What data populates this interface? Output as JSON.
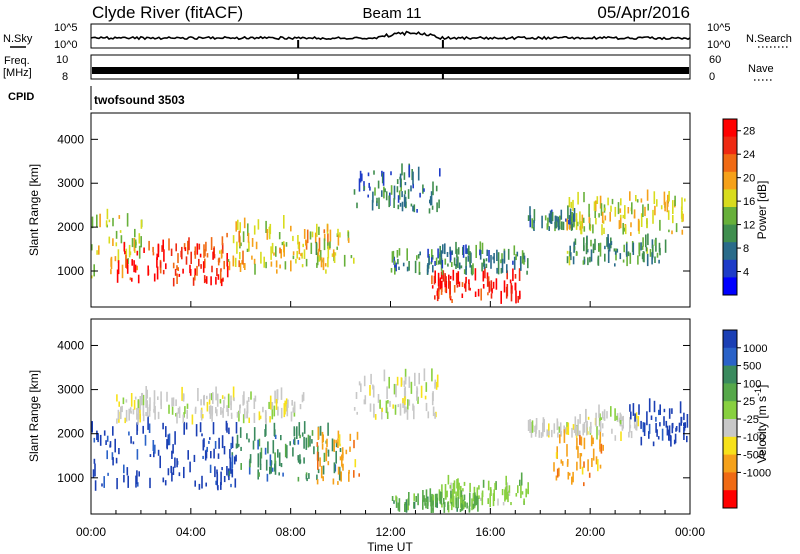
{
  "header": {
    "title": "Clyde River (fitACF)",
    "beam": "Beam 11",
    "date": "05/Apr/2016"
  },
  "strips": {
    "nsky_label": "N.Sky",
    "nsearch_label": "N.Search",
    "nsky_ticks": [
      "10^5",
      "10^0"
    ],
    "nsearch_ticks": [
      "10^5",
      "10^0"
    ],
    "freq_label": "Freq.",
    "freq_unit": "[MHz]",
    "freq_ticks": [
      "10",
      "8"
    ],
    "nave_label": "Nave",
    "nave_ticks": [
      "60",
      "0"
    ],
    "cpid_label": "CPID",
    "cpid_value": "twofsound 3503"
  },
  "chart_data": [
    {
      "type": "heatmap",
      "name": "power",
      "ylabel": "Slant Range [km]",
      "y_ticks": [
        1000,
        2000,
        3000,
        4000
      ],
      "ylim": [
        180,
        4600
      ],
      "xlim_hours": [
        0,
        24
      ],
      "colorbar": {
        "label": "Power [dB]",
        "ticks": [
          4,
          8,
          12,
          16,
          20,
          24,
          28
        ],
        "range": [
          0,
          30
        ],
        "colors": [
          "#0000ff",
          "#1e3cc8",
          "#2a6b8a",
          "#3f8e4e",
          "#67b03a",
          "#d8dc1e",
          "#f5a11a",
          "#f06a14",
          "#ee2a12",
          "#ff0000"
        ]
      },
      "echo_regions": [
        {
          "t0": 0.0,
          "t1": 2.0,
          "r0": 800,
          "r1": 2300,
          "level": 0.55
        },
        {
          "t0": 1.0,
          "t1": 5.5,
          "r0": 650,
          "r1": 1500,
          "level": 0.9
        },
        {
          "t0": 5.0,
          "t1": 9.5,
          "r0": 900,
          "r1": 2000,
          "level": 0.6
        },
        {
          "t0": 9.0,
          "t1": 10.5,
          "r0": 950,
          "r1": 1900,
          "level": 0.55
        },
        {
          "t0": 13.5,
          "t1": 17.2,
          "r0": 250,
          "r1": 850,
          "level": 0.95
        },
        {
          "t0": 17.5,
          "t1": 19.5,
          "r0": 1900,
          "r1": 2200,
          "level": 0.3
        },
        {
          "t0": 19.0,
          "t1": 23.8,
          "r0": 1800,
          "r1": 2600,
          "level": 0.55
        },
        {
          "t0": 10.5,
          "t1": 14.0,
          "r0": 2300,
          "r1": 3200,
          "level": 0.25
        },
        {
          "t0": 12.0,
          "t1": 17.5,
          "r0": 900,
          "r1": 1400,
          "level": 0.3
        },
        {
          "t0": 19.0,
          "t1": 23.0,
          "r0": 1100,
          "r1": 1600,
          "level": 0.35
        }
      ]
    },
    {
      "type": "heatmap",
      "name": "velocity",
      "xlabel": "Time UT",
      "ylabel": "Slant Range [km]",
      "x_ticks": [
        "00:00",
        "04:00",
        "08:00",
        "12:00",
        "16:00",
        "20:00",
        "00:00"
      ],
      "y_ticks": [
        1000,
        2000,
        3000,
        4000
      ],
      "ylim": [
        180,
        4600
      ],
      "xlim_hours": [
        0,
        24
      ],
      "colorbar": {
        "label": "Velocity [m s^-1]",
        "ticks": [
          "1000",
          "500",
          "100",
          "25",
          "-25",
          "-100",
          "-500",
          "-1000"
        ],
        "colors": [
          "#1b3fb4",
          "#2a62c8",
          "#3a8a5e",
          "#56a84a",
          "#88d040",
          "#c8c8c8",
          "#f7e11a",
          "#f5a11a",
          "#f06a14",
          "#ff0000"
        ]
      },
      "echo_regions": [
        {
          "t0": 0.0,
          "t1": 5.8,
          "r0": 700,
          "r1": 2100,
          "class": 0
        },
        {
          "t0": 5.5,
          "t1": 10.0,
          "r0": 900,
          "r1": 2000,
          "class": 2
        },
        {
          "t0": 1.0,
          "t1": 8.5,
          "r0": 2200,
          "r1": 2800,
          "class": 5
        },
        {
          "t0": 9.0,
          "t1": 10.8,
          "r0": 800,
          "r1": 1900,
          "class": 7
        },
        {
          "t0": 14.0,
          "t1": 17.5,
          "r0": 300,
          "r1": 850,
          "class": 4
        },
        {
          "t0": 12.0,
          "t1": 15.5,
          "r0": 200,
          "r1": 500,
          "class": 3
        },
        {
          "t0": 17.5,
          "t1": 19.5,
          "r0": 1900,
          "r1": 2100,
          "class": 5
        },
        {
          "t0": 18.5,
          "t1": 20.5,
          "r0": 800,
          "r1": 1800,
          "class": 7
        },
        {
          "t0": 19.5,
          "t1": 22.0,
          "r0": 1800,
          "r1": 2400,
          "class": 5
        },
        {
          "t0": 21.5,
          "t1": 23.9,
          "r0": 1700,
          "r1": 2500,
          "class": 0
        },
        {
          "t0": 10.5,
          "t1": 14.0,
          "r0": 2300,
          "r1": 3200,
          "class": 5
        }
      ]
    }
  ]
}
